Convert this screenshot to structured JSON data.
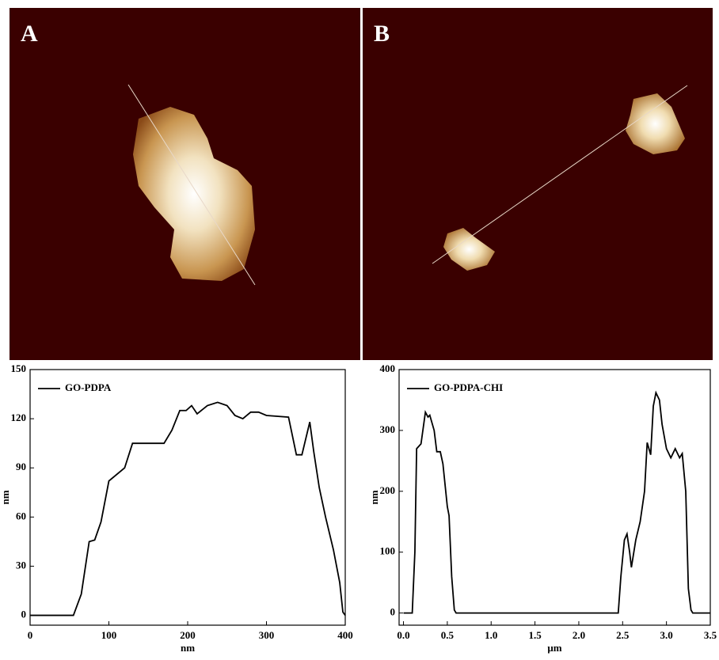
{
  "panels": [
    {
      "label": "A"
    },
    {
      "label": "B"
    }
  ],
  "chart_data": [
    {
      "type": "line",
      "xlabel": "nm",
      "ylabel": "nm",
      "xlim": [
        0,
        400
      ],
      "ylim": [
        -6,
        150
      ],
      "xticks": [
        0,
        100,
        200,
        300,
        400
      ],
      "yticks": [
        0,
        30,
        60,
        90,
        120,
        150
      ],
      "legend": "upper left",
      "x": [
        0,
        55,
        65,
        75,
        82,
        90,
        100,
        120,
        130,
        170,
        180,
        190,
        198,
        205,
        212,
        225,
        238,
        250,
        260,
        270,
        280,
        290,
        300,
        328,
        338,
        345,
        355,
        360,
        367,
        375,
        385,
        393,
        397,
        400
      ],
      "series": [
        {
          "name": "GO-PDPA",
          "color": "#000000",
          "values": [
            0,
            0,
            13,
            45,
            46,
            57,
            82,
            90,
            105,
            105,
            113,
            125,
            125,
            128,
            123,
            128,
            130,
            128,
            122,
            120,
            124,
            124,
            122,
            121,
            98,
            98,
            118,
            100,
            78,
            60,
            40,
            20,
            2,
            0
          ]
        }
      ]
    },
    {
      "type": "line",
      "xlabel": "μm",
      "ylabel": "nm",
      "xlim": [
        -0.05,
        3.5
      ],
      "ylim": [
        -20,
        400
      ],
      "xticks": [
        {
          "value": 0,
          "label": "0.0"
        },
        0.5,
        {
          "value": 1,
          "label": "1.0"
        },
        1.5,
        {
          "value": 2,
          "label": "2.0"
        },
        2.5,
        {
          "value": 3,
          "label": "3.0"
        },
        3.5
      ],
      "yticks": [
        0,
        100,
        200,
        300,
        400
      ],
      "legend": "upper left",
      "x": [
        0,
        0.1,
        0.13,
        0.15,
        0.2,
        0.25,
        0.28,
        0.3,
        0.35,
        0.38,
        0.42,
        0.45,
        0.5,
        0.52,
        0.55,
        0.58,
        0.6,
        2.4,
        2.45,
        2.48,
        2.52,
        2.55,
        2.58,
        2.6,
        2.65,
        2.7,
        2.75,
        2.78,
        2.82,
        2.85,
        2.88,
        2.92,
        2.95,
        3.0,
        3.05,
        3.1,
        3.15,
        3.18,
        3.22,
        3.25,
        3.28,
        3.3,
        3.5
      ],
      "series": [
        {
          "name": "GO-PDPA-CHI",
          "color": "#000000",
          "values": [
            0,
            0,
            100,
            270,
            278,
            330,
            322,
            325,
            300,
            265,
            265,
            245,
            175,
            160,
            60,
            5,
            0,
            0,
            0,
            60,
            120,
            130,
            100,
            75,
            120,
            150,
            200,
            280,
            260,
            340,
            362,
            350,
            310,
            270,
            255,
            270,
            255,
            262,
            200,
            40,
            5,
            0,
            0
          ]
        }
      ]
    }
  ]
}
